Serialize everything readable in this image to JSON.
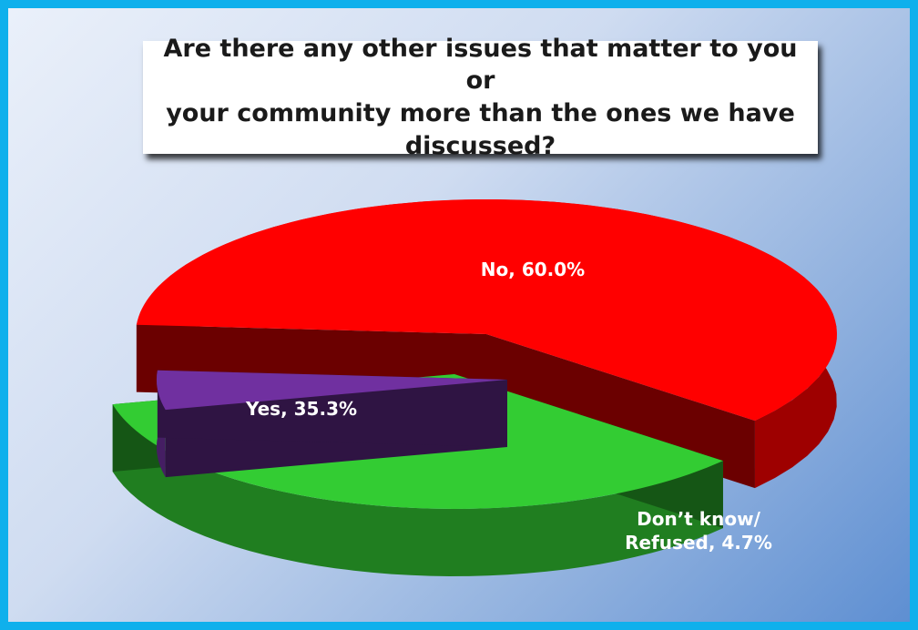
{
  "chart_data": {
    "type": "pie",
    "title": "Are there any other issues that matter to you or\nyour community more than the ones we have\ndiscussed?",
    "categories": [
      "No",
      "Yes",
      "Don’t know/ Refused"
    ],
    "values": [
      60.0,
      35.3,
      4.7
    ],
    "labels": [
      "No, 60.0%",
      "Yes, 35.3%",
      "Don’t know/\nRefused, 4.7%"
    ],
    "colors": [
      "#ff0000",
      "#33cc33",
      "#7030a0"
    ],
    "exploded": true,
    "three_d": true
  }
}
